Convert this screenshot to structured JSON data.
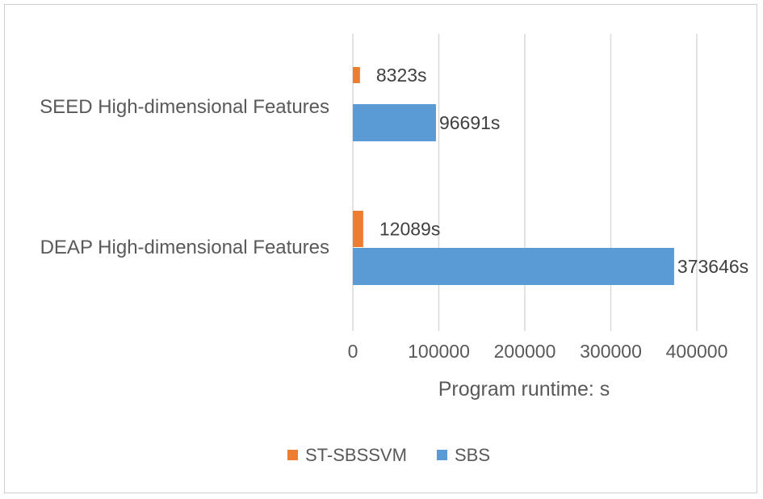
{
  "chart_data": {
    "type": "bar",
    "orientation": "horizontal",
    "categories": [
      "SEED High-dimensional Features",
      "DEAP High-dimensional Features"
    ],
    "series": [
      {
        "name": "ST-SBSSVM",
        "color": "#ED7D31",
        "values": [
          8323,
          12089
        ],
        "labels": [
          "8323s",
          "12089s"
        ]
      },
      {
        "name": "SBS",
        "color": "#5B9BD5",
        "values": [
          96691,
          373646
        ],
        "labels": [
          "96691s",
          "373646s"
        ]
      }
    ],
    "xaxis": {
      "label": "Program runtime: s",
      "min": 0,
      "max": 400000,
      "ticks": [
        0,
        100000,
        200000,
        300000,
        400000
      ],
      "tick_labels": [
        "0",
        "100000",
        "200000",
        "300000",
        "400000"
      ]
    },
    "grid": true,
    "legend": "bottom"
  }
}
